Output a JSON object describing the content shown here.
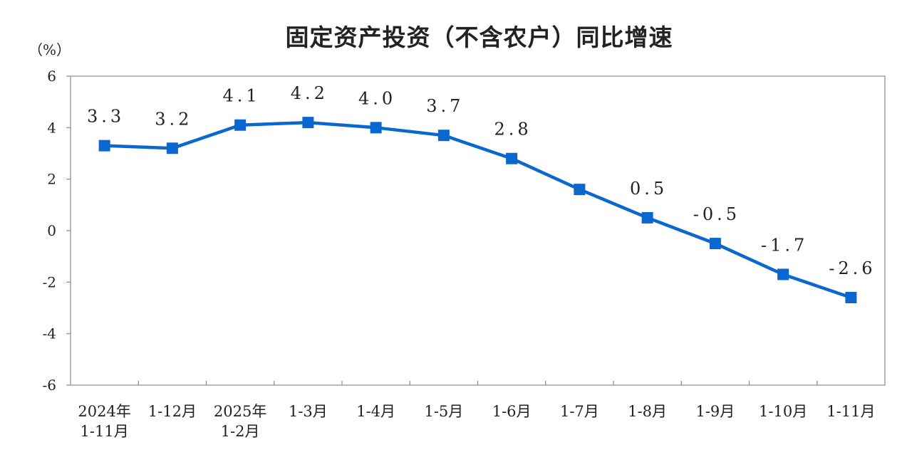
{
  "chart_data": {
    "type": "line",
    "title": "固定资产投资（不含农户）同比增速",
    "ylabel": "（%）",
    "xlabel": "",
    "categories": [
      [
        "2024年",
        "1-11月"
      ],
      [
        "1-12月"
      ],
      [
        "2025年",
        "1-2月"
      ],
      [
        "1-3月"
      ],
      [
        "1-4月"
      ],
      [
        "1-5月"
      ],
      [
        "1-6月"
      ],
      [
        "1-7月"
      ],
      [
        "1-8月"
      ],
      [
        "1-9月"
      ],
      [
        "1-10月"
      ],
      [
        "1-11月"
      ]
    ],
    "series": [
      {
        "values": [
          3.3,
          3.2,
          4.1,
          4.2,
          4.0,
          3.7,
          2.8,
          1.6,
          0.5,
          -0.5,
          -1.7,
          -2.6
        ],
        "labels": [
          "3.3",
          "3.2",
          "4.1",
          "4.2",
          "4.0",
          "3.7",
          "2.8",
          "",
          "0.5",
          "-0.5",
          "-1.7",
          "-2.6"
        ],
        "color": "#0b67d0"
      }
    ],
    "ylim": [
      -6,
      6
    ],
    "yticks": [
      6,
      4,
      2,
      0,
      -2,
      -4,
      -6
    ],
    "ytick_labels": [
      "6",
      "4",
      "2",
      "0",
      "-2",
      "-4",
      "-6"
    ],
    "grid": false,
    "axis_color": "#8a8a8a"
  }
}
